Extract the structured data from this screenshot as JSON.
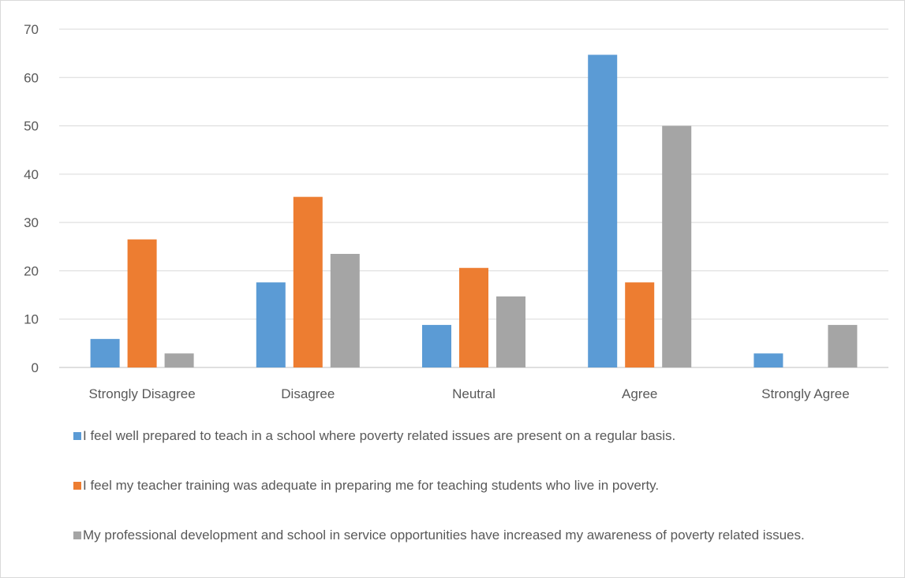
{
  "chart_data": {
    "type": "bar",
    "title": "",
    "xlabel": "",
    "ylabel": "",
    "ylim": [
      0,
      70
    ],
    "yticks": [
      0,
      10,
      20,
      30,
      40,
      50,
      60,
      70
    ],
    "grid": true,
    "legend_position": "bottom",
    "categories": [
      "Strongly Disagree",
      "Disagree",
      "Neutral",
      "Agree",
      "Strongly Agree"
    ],
    "series": [
      {
        "name": "I feel well prepared to teach in a school where poverty related issues are present on a regular basis.",
        "color": "#5b9bd5",
        "values": [
          5.9,
          17.6,
          8.8,
          64.7,
          2.9
        ]
      },
      {
        "name": "I feel my teacher training was adequate in preparing me for teaching students who live in poverty.",
        "color": "#ed7d31",
        "values": [
          26.5,
          35.3,
          20.6,
          17.6,
          0
        ]
      },
      {
        "name": "My professional development and school in service opportunities have increased my awareness of poverty related issues.",
        "color": "#a5a5a5",
        "values": [
          2.9,
          23.5,
          14.7,
          50.0,
          8.8
        ]
      }
    ]
  }
}
